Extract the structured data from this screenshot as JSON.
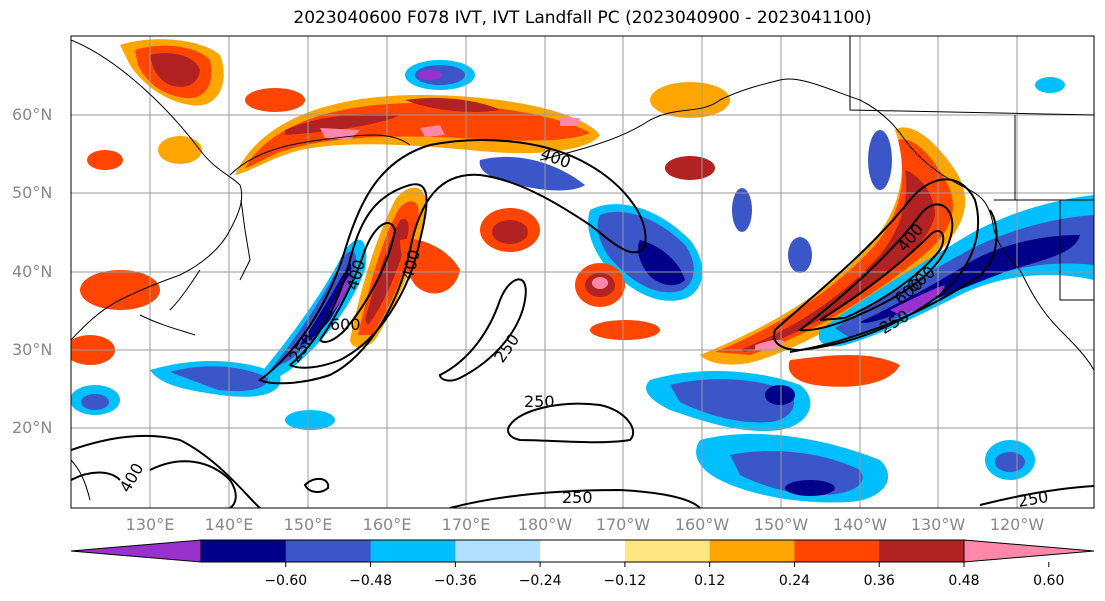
{
  "title": "2023040600 F078 IVT, IVT Landfall PC (2023040900 - 2023041100)",
  "lat_labels": [
    "60°N",
    "50°N",
    "40°N",
    "30°N",
    "20°N"
  ],
  "lon_labels": [
    "130°E",
    "140°E",
    "150°E",
    "160°E",
    "170°E",
    "180°W",
    "170°W",
    "160°W",
    "150°W",
    "140°W",
    "130°W",
    "120°W"
  ],
  "contour_labels": [
    "400",
    "400",
    "400",
    "600",
    "600",
    "250",
    "250",
    "400",
    "250",
    "250",
    "400",
    "600",
    "250",
    "250"
  ],
  "colorbar": {
    "ticks": [
      "−0.60",
      "−0.48",
      "−0.36",
      "−0.24",
      "−0.12",
      "0.12",
      "0.24",
      "0.36",
      "0.48",
      "0.60"
    ],
    "colors": [
      "#9932cc",
      "#00008b",
      "#3a56c8",
      "#00bfff",
      "#b0e0ff",
      "#ffffff",
      "#ffe680",
      "#ffa500",
      "#ff4500",
      "#b22222",
      "#ff88aa"
    ]
  }
}
